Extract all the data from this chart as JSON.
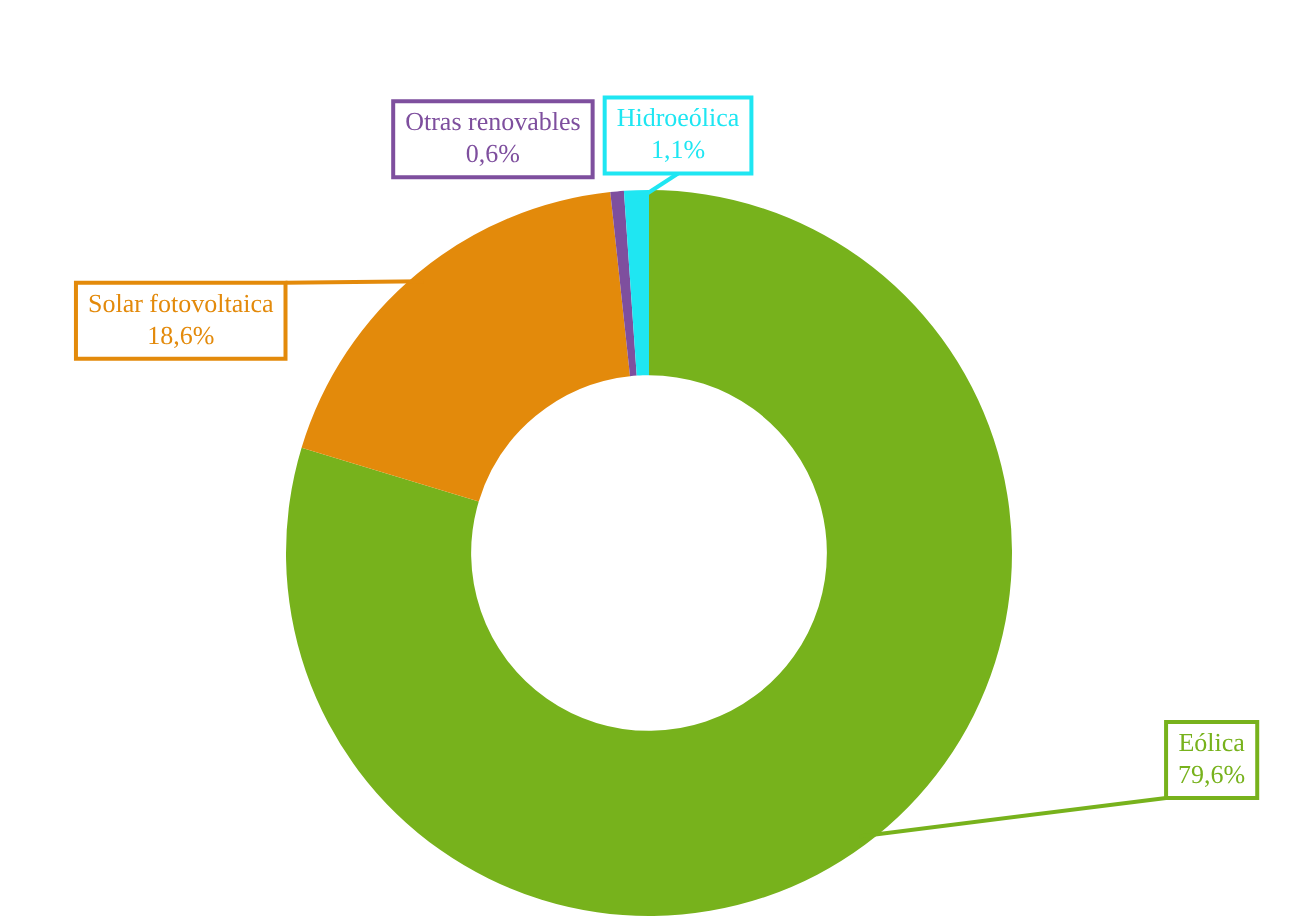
{
  "chart_data": {
    "type": "donut",
    "categories": [
      "Eólica",
      "Solar fotovoltaica",
      "Otras renovables",
      "Hidroeólica"
    ],
    "values": [
      79.6,
      18.6,
      0.6,
      1.1
    ],
    "colors": [
      "#77b21c",
      "#e38a0b",
      "#7e4f9e",
      "#1fe6f2"
    ],
    "value_labels": [
      "79,6%",
      "18,6%",
      "0,6%",
      "1,1%"
    ]
  }
}
